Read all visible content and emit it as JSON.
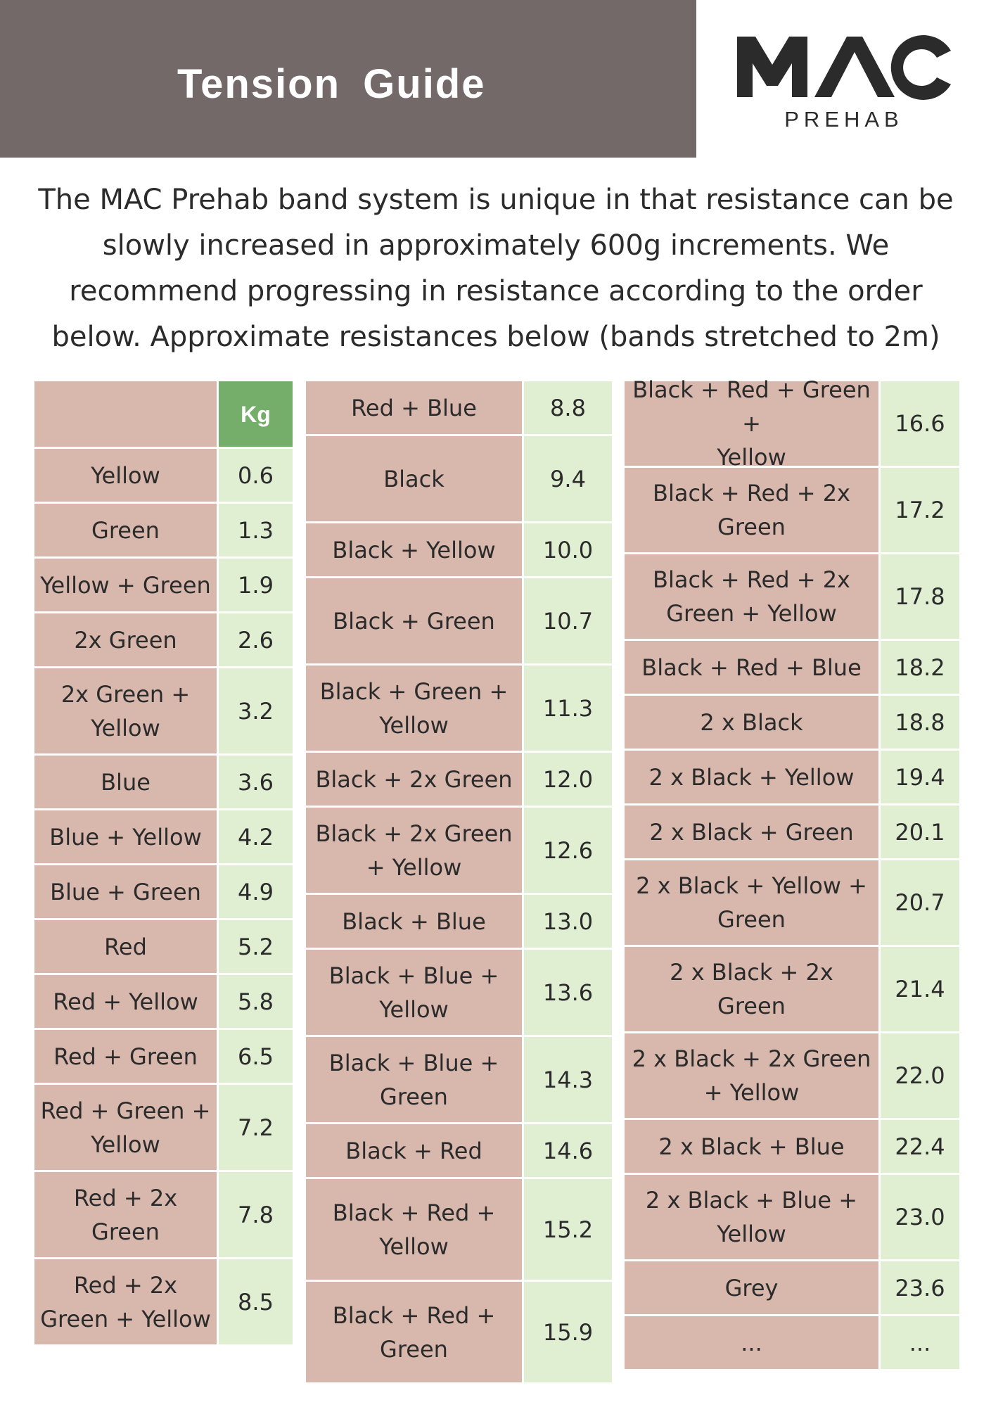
{
  "header": {
    "title": "Tension  Guide"
  },
  "logo": {
    "word": "MAC",
    "sub": "PREHAB"
  },
  "intro": {
    "lines": [
      "The MAC Prehab band system is unique in that resistance can be",
      "slowly increased in approximately 600g increments. We",
      "recommend progressing in resistance according to the order",
      "below. Approximate resistances below (bands stretched to 2m)"
    ]
  },
  "table": {
    "kg_header": "Kg",
    "columns": [
      [
        {
          "name": "Yellow",
          "kg": "0.6"
        },
        {
          "name": "Green",
          "kg": "1.3"
        },
        {
          "name": "Yellow + Green",
          "kg": "1.9"
        },
        {
          "name": "2x Green",
          "kg": "2.6"
        },
        {
          "name": "2x Green +\nYellow",
          "kg": "3.2"
        },
        {
          "name": "Blue",
          "kg": "3.6"
        },
        {
          "name": "Blue + Yellow",
          "kg": "4.2"
        },
        {
          "name": "Blue + Green",
          "kg": "4.9"
        },
        {
          "name": "Red",
          "kg": "5.2"
        },
        {
          "name": "Red + Yellow",
          "kg": "5.8"
        },
        {
          "name": "Red + Green",
          "kg": "6.5"
        },
        {
          "name": "Red + Green +\nYellow",
          "kg": "7.2"
        },
        {
          "name": "Red + 2x\nGreen",
          "kg": "7.8"
        },
        {
          "name": "Red + 2x\nGreen + Yellow",
          "kg": "8.5"
        }
      ],
      [
        {
          "name": "Red + Blue",
          "kg": "8.8"
        },
        {
          "name": "Black",
          "kg": "9.4"
        },
        {
          "name": "Black + Yellow",
          "kg": "10.0"
        },
        {
          "name": "Black + Green",
          "kg": "10.7"
        },
        {
          "name": "Black + Green +\nYellow",
          "kg": "11.3"
        },
        {
          "name": "Black + 2x Green",
          "kg": "12.0"
        },
        {
          "name": "Black + 2x Green\n+ Yellow",
          "kg": "12.6"
        },
        {
          "name": "Black + Blue",
          "kg": "13.0"
        },
        {
          "name": "Black + Blue +\nYellow",
          "kg": "13.6"
        },
        {
          "name": "Black + Blue +\nGreen",
          "kg": "14.3"
        },
        {
          "name": "Black + Red",
          "kg": "14.6"
        },
        {
          "name": "Black + Red +\nYellow",
          "kg": "15.2"
        },
        {
          "name": "Black + Red +\nGreen",
          "kg": "15.9"
        }
      ],
      [
        {
          "name": "Black + Red + Green +\nYellow",
          "kg": "16.6"
        },
        {
          "name": "Black + Red + 2x\nGreen",
          "kg": "17.2"
        },
        {
          "name": "Black + Red + 2x\nGreen + Yellow",
          "kg": "17.8"
        },
        {
          "name": "Black + Red + Blue",
          "kg": "18.2"
        },
        {
          "name": "2 x Black",
          "kg": "18.8"
        },
        {
          "name": "2 x Black + Yellow",
          "kg": "19.4"
        },
        {
          "name": "2 x Black + Green",
          "kg": "20.1"
        },
        {
          "name": "2 x Black + Yellow +\nGreen",
          "kg": "20.7"
        },
        {
          "name": "2 x Black + 2x\nGreen",
          "kg": "21.4"
        },
        {
          "name": "2 x Black + 2x Green\n+ Yellow",
          "kg": "22.0"
        },
        {
          "name": "2 x Black + Blue",
          "kg": "22.4"
        },
        {
          "name": "2 x Black + Blue +\nYellow",
          "kg": "23.0"
        },
        {
          "name": "Grey",
          "kg": "23.6"
        },
        {
          "name": "...",
          "kg": "..."
        }
      ]
    ]
  }
}
